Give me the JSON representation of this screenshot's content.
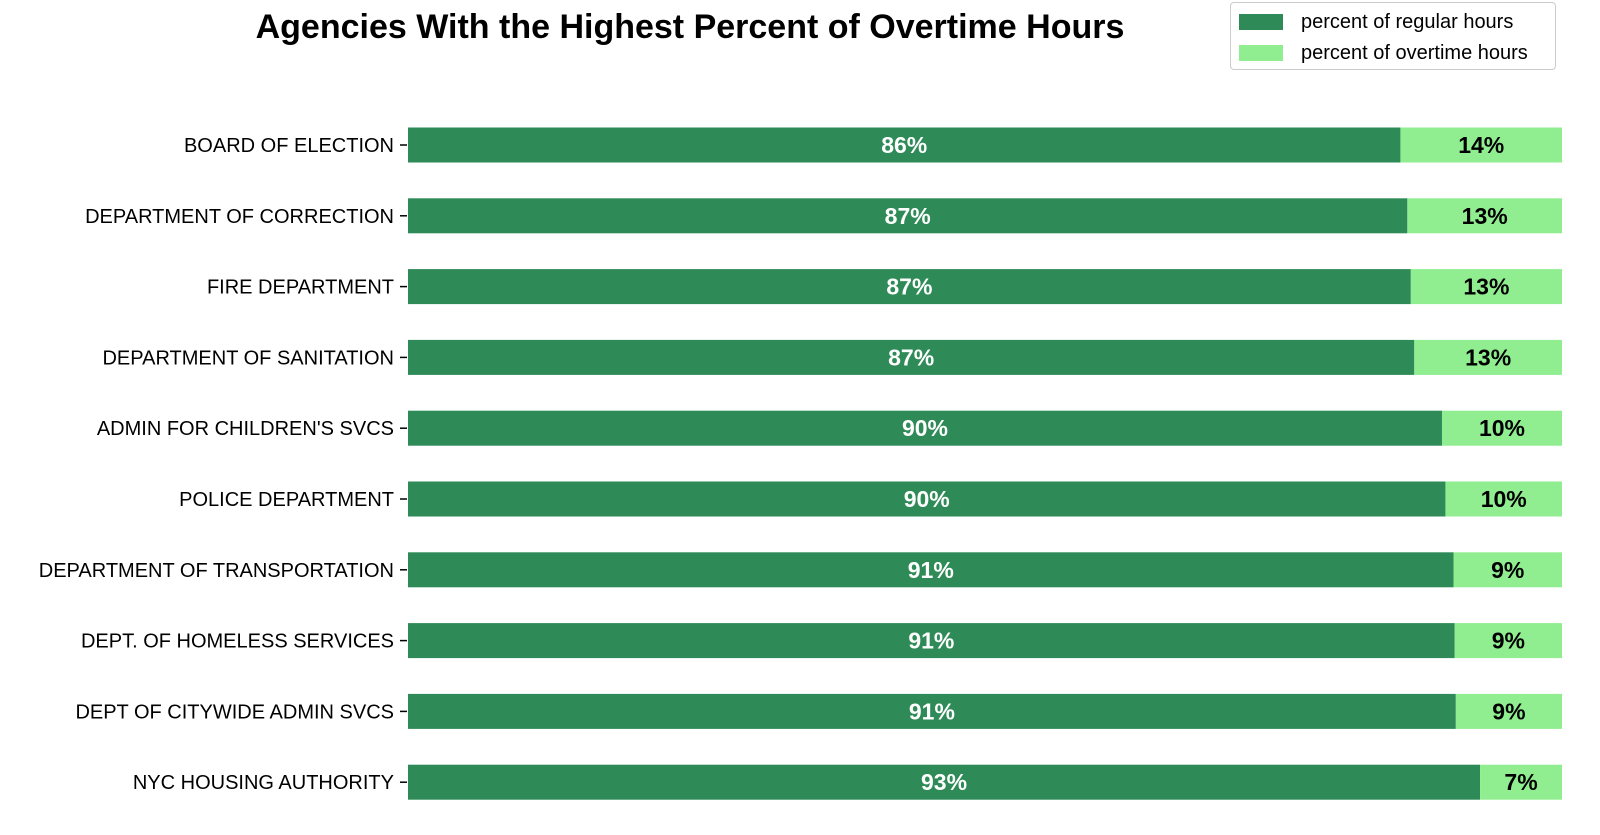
{
  "chart_data": {
    "type": "bar",
    "orientation": "horizontal",
    "stacked": true,
    "title": "Agencies With the Highest Percent of Overtime Hours",
    "xlabel": "",
    "ylabel": "",
    "xlim": [
      0,
      100
    ],
    "grid": false,
    "legend_position": "top-right",
    "categories": [
      "BOARD OF ELECTION",
      "DEPARTMENT OF CORRECTION",
      "FIRE DEPARTMENT",
      "DEPARTMENT OF SANITATION",
      "ADMIN FOR CHILDREN'S SVCS",
      "POLICE DEPARTMENT",
      "DEPARTMENT OF TRANSPORTATION",
      "DEPT. OF HOMELESS SERVICES",
      "DEPT OF CITYWIDE ADMIN SVCS",
      "NYC HOUSING AUTHORITY"
    ],
    "series": [
      {
        "name": "percent of regular hours",
        "color": "#2e8b57",
        "label_color": "#ffffff",
        "values": [
          86.0,
          86.6,
          86.9,
          87.2,
          89.6,
          89.9,
          90.6,
          90.7,
          90.8,
          92.9
        ],
        "labels": [
          "86%",
          "87%",
          "87%",
          "87%",
          "90%",
          "90%",
          "91%",
          "91%",
          "91%",
          "93%"
        ]
      },
      {
        "name": "percent of overtime hours",
        "color": "#90ee90",
        "label_color": "#000000",
        "values": [
          14.0,
          13.4,
          13.1,
          12.8,
          10.4,
          10.1,
          9.4,
          9.3,
          9.2,
          7.1
        ],
        "labels": [
          "14%",
          "13%",
          "13%",
          "13%",
          "10%",
          "10%",
          "9%",
          "9%",
          "9%",
          "7%"
        ]
      }
    ]
  }
}
